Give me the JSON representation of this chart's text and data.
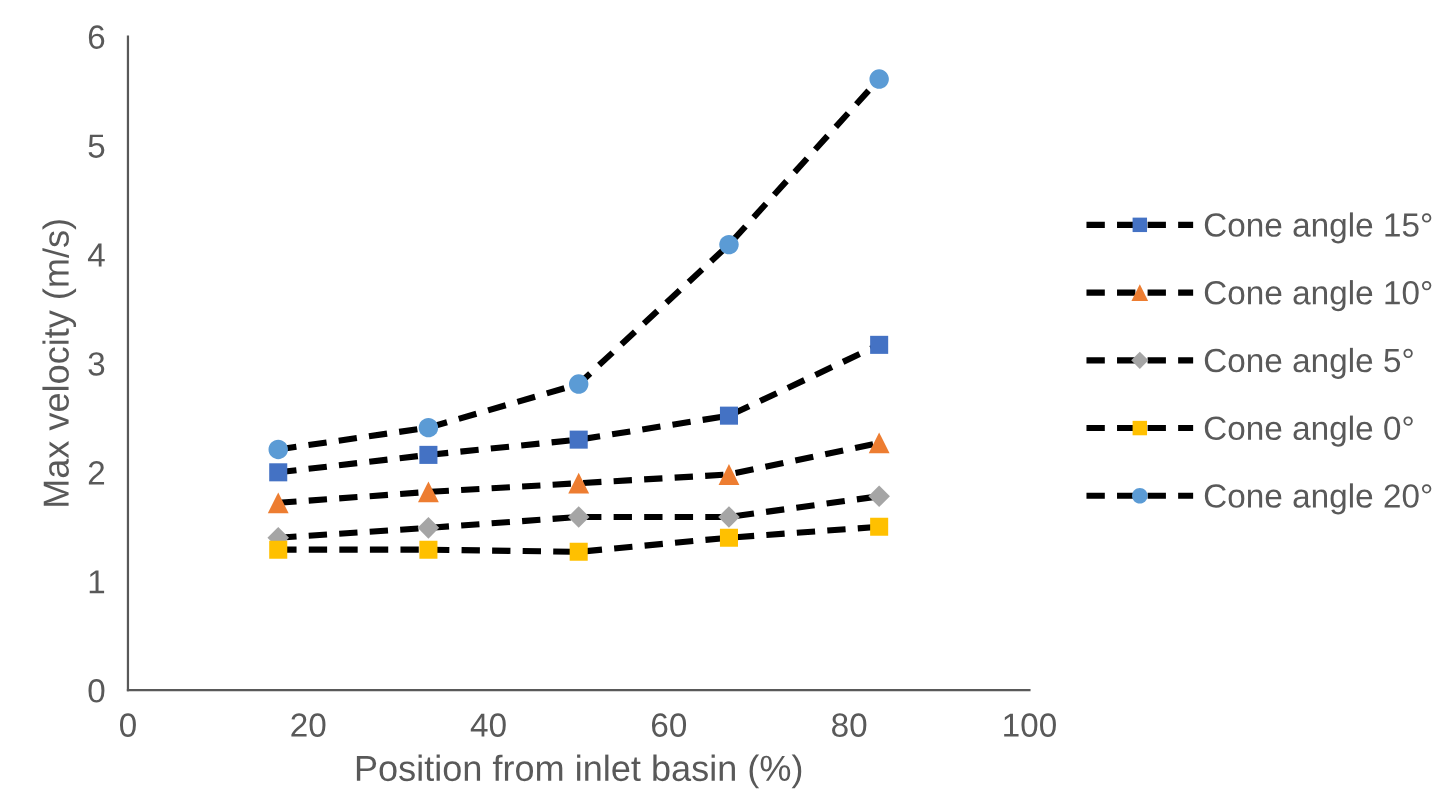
{
  "chart_data": {
    "type": "line",
    "xlabel": "Position from inlet basin (%)",
    "ylabel": "Max velocity (m/s)",
    "x": [
      16.67,
      33.33,
      50,
      66.67,
      83.33
    ],
    "xlim": [
      0,
      100
    ],
    "xticks": [
      0,
      20,
      40,
      60,
      80,
      100
    ],
    "ylim": [
      0,
      6
    ],
    "yticks": [
      0,
      1,
      2,
      3,
      4,
      5,
      6
    ],
    "grid": false,
    "legend": "right",
    "line_style": "dashed",
    "series": [
      {
        "name": "Cone angle 15°",
        "color": "#4472c4",
        "marker": "square",
        "values": [
          2.0,
          2.16,
          2.3,
          2.52,
          3.17
        ]
      },
      {
        "name": "Cone angle 10°",
        "color": "#ed7d31",
        "marker": "triangle",
        "values": [
          1.72,
          1.82,
          1.9,
          1.98,
          2.27
        ]
      },
      {
        "name": "Cone angle 5°",
        "color": "#a5a5a5",
        "marker": "diamond",
        "values": [
          1.4,
          1.49,
          1.59,
          1.59,
          1.78
        ]
      },
      {
        "name": "Cone angle 0°",
        "color": "#ffc000",
        "marker": "square",
        "values": [
          1.29,
          1.29,
          1.27,
          1.4,
          1.5
        ]
      },
      {
        "name": "Cone angle 20°",
        "color": "#5b9bd5",
        "marker": "circle",
        "values": [
          2.21,
          2.41,
          2.81,
          4.09,
          5.61
        ]
      }
    ]
  }
}
